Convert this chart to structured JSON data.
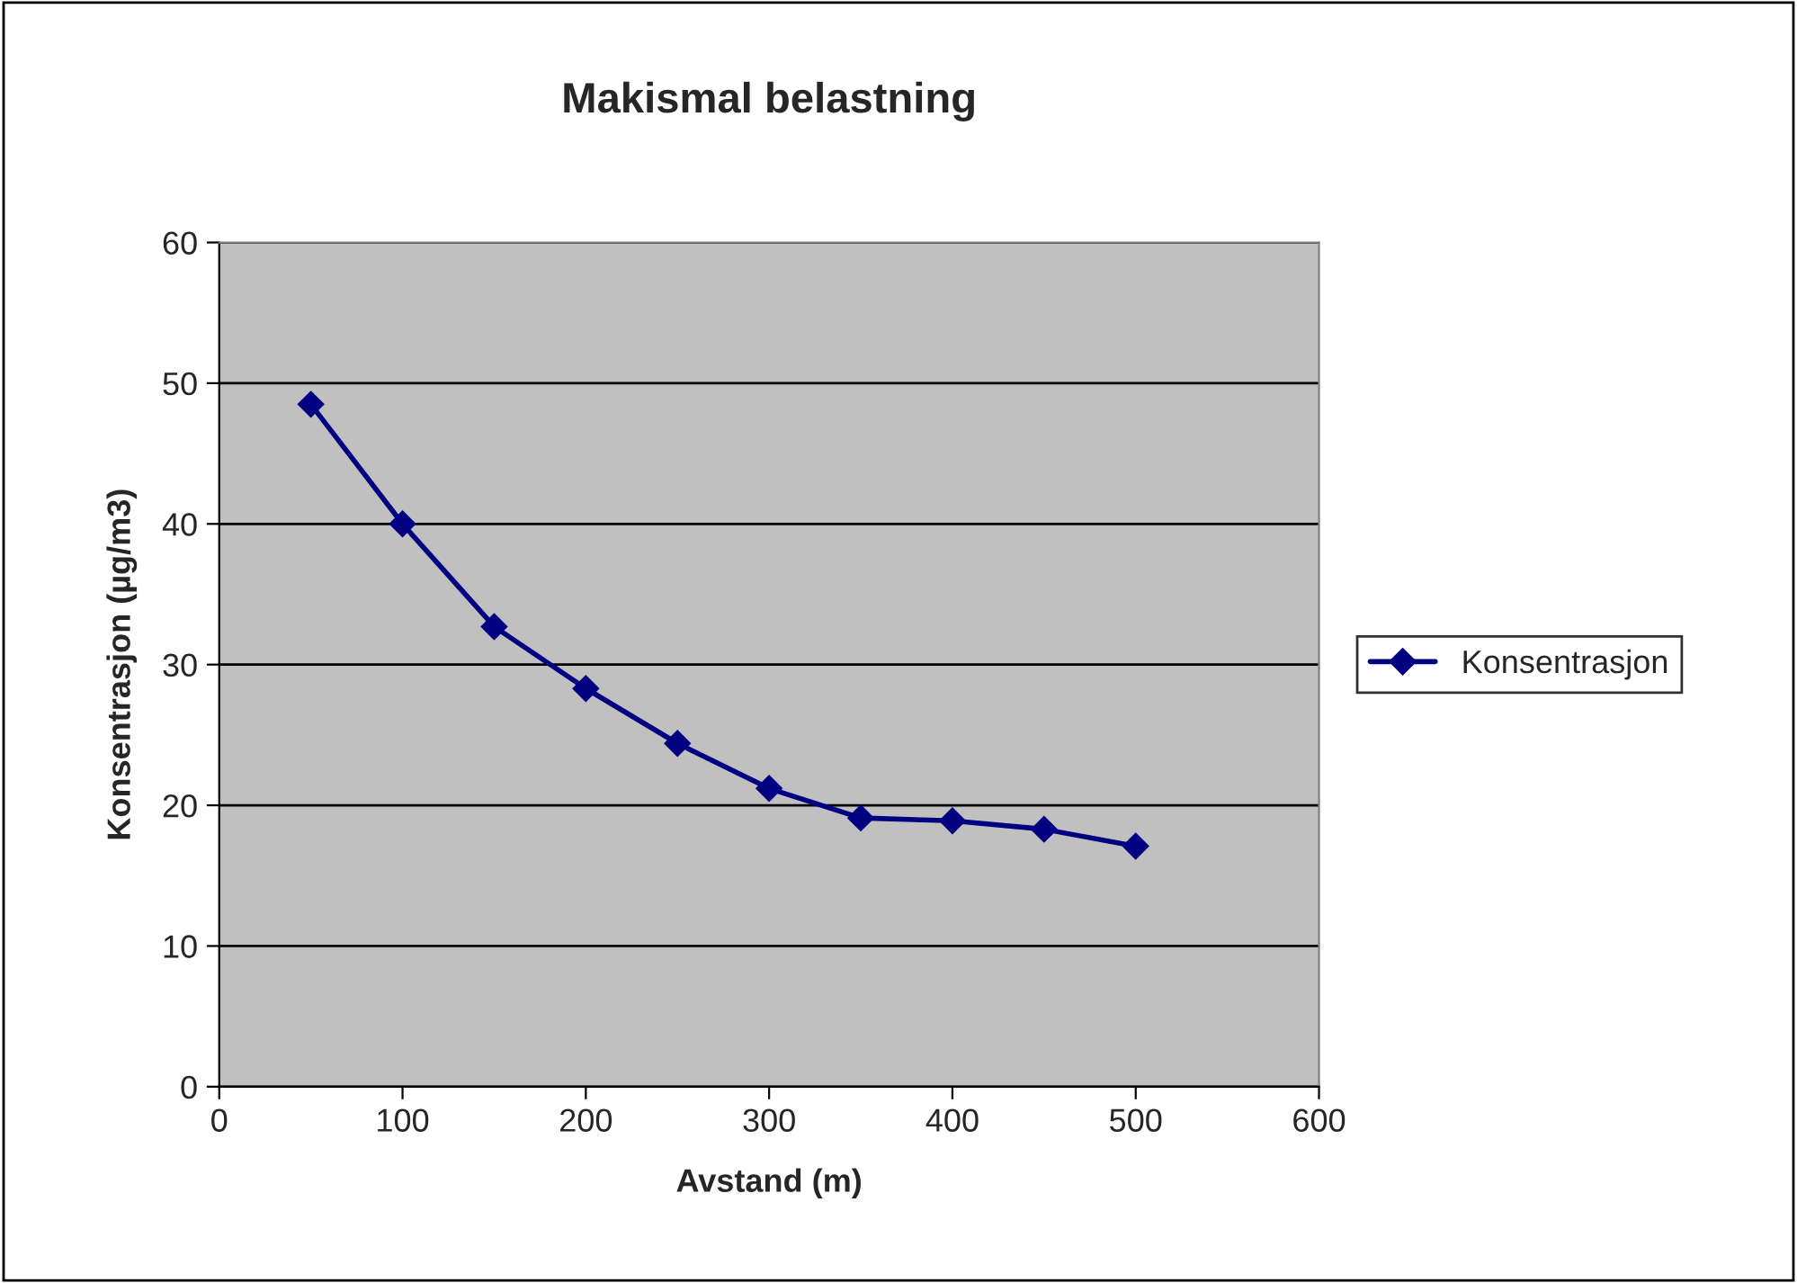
{
  "chart_data": {
    "type": "line",
    "title": "Makismal belastning",
    "xlabel": "Avstand (m)",
    "ylabel": "Konsentrasjon (µg/m3)",
    "x": [
      50,
      100,
      150,
      200,
      250,
      300,
      350,
      400,
      450,
      500
    ],
    "series": [
      {
        "name": "Konsentrasjon",
        "color": "#000080",
        "values": [
          48.5,
          40.0,
          32.7,
          28.3,
          24.4,
          21.2,
          19.1,
          18.9,
          18.3,
          17.1
        ]
      }
    ],
    "xlim": [
      0,
      600
    ],
    "xticks": [
      0,
      100,
      200,
      300,
      400,
      500,
      600
    ],
    "ylim": [
      0,
      60
    ],
    "yticks": [
      0,
      10,
      20,
      30,
      40,
      50,
      60
    ],
    "grid": "y",
    "legend": "right",
    "marker": "diamond",
    "line_style": "solid"
  }
}
